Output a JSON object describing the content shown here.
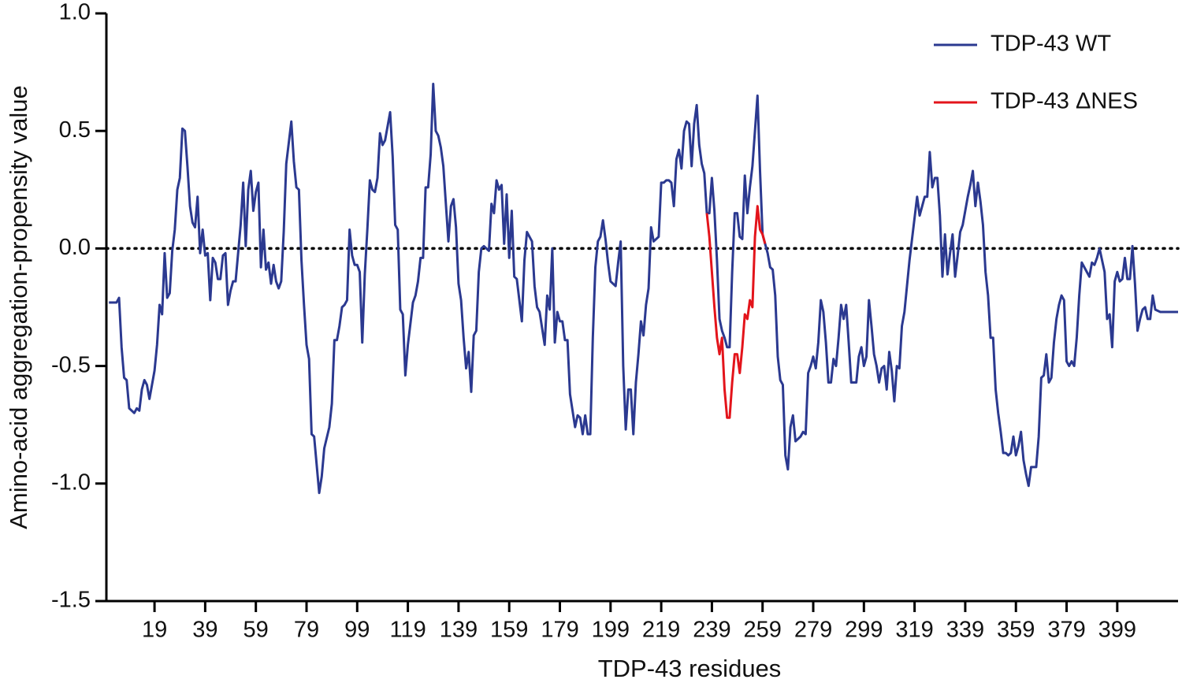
{
  "chart_data": {
    "type": "line",
    "xlabel": "TDP-43 residues",
    "ylabel": "Amino-acid aggregation-propensity value",
    "xlim": [
      0,
      423
    ],
    "xticks": [
      19,
      39,
      59,
      79,
      99,
      119,
      139,
      159,
      179,
      199,
      219,
      239,
      259,
      279,
      299,
      319,
      339,
      359,
      379,
      399
    ],
    "ylim": [
      -1.5,
      1
    ],
    "yticks": [
      -1.5,
      {
        "value": -1,
        "label": "-1.0"
      },
      -0.5,
      {
        "value": 0,
        "label": "0.0"
      },
      0.5,
      {
        "value": 1,
        "label": "1.0"
      }
    ],
    "hline": 0,
    "legend": "upper right",
    "series": [
      {
        "name": "TDP-43 WT",
        "color": "#2b3990",
        "x": [
          1,
          4,
          5,
          6,
          7,
          8,
          9,
          11,
          12,
          13,
          14,
          15,
          16,
          17,
          19,
          20,
          21,
          22,
          23,
          24,
          25,
          26,
          27,
          28,
          29,
          30,
          31,
          32,
          33,
          34,
          35,
          36,
          37,
          38,
          39,
          40,
          41,
          42,
          43,
          44,
          45,
          46,
          47,
          48,
          49,
          50,
          51,
          53,
          54,
          55,
          56,
          57,
          58,
          59,
          60,
          61,
          62,
          63,
          64,
          65,
          66,
          67,
          68,
          69,
          70,
          71,
          72,
          73,
          74,
          75,
          76,
          77,
          78,
          79,
          80,
          81,
          82,
          83,
          84,
          85,
          86,
          88,
          89,
          90,
          91,
          92,
          93,
          94,
          95,
          96,
          97,
          98,
          99,
          100,
          101,
          102,
          103,
          104,
          105,
          106,
          107,
          108,
          109,
          110,
          112,
          113,
          114,
          115,
          116,
          117,
          118,
          119,
          120,
          121,
          122,
          123,
          124,
          125,
          126,
          127,
          128,
          129,
          130,
          131,
          132,
          133,
          135,
          136,
          137,
          138,
          139,
          140,
          141,
          142,
          143,
          144,
          145,
          146,
          147,
          148,
          149,
          151,
          152,
          153,
          154,
          155,
          156,
          157,
          158,
          159,
          160,
          161,
          162,
          163,
          164,
          165,
          166,
          168,
          169,
          170,
          171,
          172,
          173,
          174,
          175,
          176,
          177,
          178,
          179,
          180,
          181,
          182,
          183,
          185,
          186,
          187,
          188,
          189,
          190,
          191,
          192,
          193,
          194,
          195,
          196,
          197,
          198,
          199,
          201,
          202,
          203,
          204,
          205,
          206,
          207,
          208,
          209,
          210,
          211,
          212,
          213,
          214,
          215,
          216,
          218,
          219,
          220,
          221,
          222,
          223,
          224,
          225,
          226,
          227,
          228,
          229,
          230,
          231,
          232,
          233,
          234,
          235,
          236,
          237,
          238,
          239,
          240,
          241,
          242,
          243,
          244,
          245,
          246,
          247,
          248,
          249,
          250,
          251,
          252,
          253,
          254,
          255,
          256,
          257,
          258,
          259,
          260,
          261,
          262,
          263,
          264,
          265,
          266,
          267,
          268,
          269,
          270,
          271,
          272,
          273,
          274,
          275,
          276,
          277,
          278,
          279,
          280,
          281,
          282,
          283,
          284,
          285,
          286,
          287,
          288,
          289,
          290,
          291,
          292,
          293,
          294,
          295,
          296,
          297,
          298,
          299,
          300,
          301,
          302,
          303,
          304,
          305,
          306,
          307,
          308,
          309,
          310,
          311,
          312,
          313,
          314,
          315,
          316,
          317,
          318,
          319,
          320,
          321,
          322,
          323,
          324,
          325,
          326,
          327,
          328,
          329,
          330,
          331,
          332,
          333,
          334,
          335,
          336,
          337,
          338,
          339,
          340,
          341,
          342,
          343,
          344,
          345,
          346,
          347,
          348,
          349,
          350,
          351,
          352,
          353,
          354,
          355,
          356,
          357,
          358,
          359,
          360,
          361,
          362,
          363,
          364,
          365,
          366,
          367,
          368,
          369,
          370,
          371,
          372,
          373,
          374,
          375,
          376,
          377,
          378,
          379,
          380,
          381,
          382,
          383,
          384,
          385,
          386,
          387,
          388,
          389,
          390,
          391,
          392,
          393,
          394,
          395,
          396,
          397,
          398,
          399,
          400,
          401,
          402,
          403,
          404,
          405,
          406,
          407,
          408,
          409,
          410,
          411,
          412,
          413,
          414,
          416,
          423
        ],
        "values": [
          -0.23,
          -0.23,
          -0.21,
          -0.42,
          -0.55,
          -0.56,
          -0.68,
          -0.7,
          -0.68,
          -0.69,
          -0.6,
          -0.56,
          -0.58,
          -0.64,
          -0.52,
          -0.41,
          -0.24,
          -0.28,
          -0.02,
          -0.21,
          -0.19,
          -0.01,
          0.08,
          0.25,
          0.3,
          0.51,
          0.5,
          0.35,
          0.18,
          0.11,
          0.09,
          0.22,
          -0.02,
          0.08,
          -0.03,
          -0.02,
          -0.22,
          -0.04,
          -0.06,
          -0.13,
          -0.13,
          -0.03,
          -0.02,
          -0.24,
          -0.18,
          -0.14,
          -0.14,
          0.1,
          0.28,
          0.01,
          0.25,
          0.33,
          0.16,
          0.24,
          0.28,
          -0.08,
          0.08,
          -0.09,
          -0.06,
          -0.15,
          -0.07,
          -0.14,
          -0.17,
          -0.14,
          0.07,
          0.36,
          0.45,
          0.54,
          0.37,
          0.26,
          0.25,
          -0.05,
          -0.24,
          -0.41,
          -0.47,
          -0.79,
          -0.8,
          -0.92,
          -1.04,
          -0.97,
          -0.85,
          -0.76,
          -0.66,
          -0.39,
          -0.39,
          -0.33,
          -0.25,
          -0.24,
          -0.22,
          0.08,
          -0.03,
          -0.07,
          -0.07,
          -0.1,
          -0.4,
          -0.11,
          0.08,
          0.29,
          0.25,
          0.24,
          0.3,
          0.49,
          0.44,
          0.46,
          0.58,
          0.39,
          0.1,
          0.08,
          -0.26,
          -0.28,
          -0.54,
          -0.41,
          -0.32,
          -0.23,
          -0.2,
          -0.14,
          -0.04,
          -0.04,
          0.26,
          0.26,
          0.4,
          0.7,
          0.5,
          0.48,
          0.43,
          0.35,
          0.03,
          0.18,
          0.21,
          0.09,
          -0.15,
          -0.22,
          -0.38,
          -0.51,
          -0.44,
          -0.61,
          -0.37,
          -0.35,
          -0.1,
          0.0,
          0.01,
          -0.01,
          0.19,
          0.15,
          0.29,
          0.25,
          0.27,
          0.02,
          0.23,
          -0.04,
          0.16,
          -0.12,
          -0.13,
          -0.22,
          -0.31,
          -0.05,
          0.07,
          0.03,
          -0.16,
          -0.25,
          -0.27,
          -0.34,
          -0.41,
          -0.2,
          -0.26,
          0.0,
          -0.4,
          -0.27,
          -0.31,
          -0.31,
          -0.39,
          -0.39,
          -0.62,
          -0.76,
          -0.71,
          -0.72,
          -0.79,
          -0.71,
          -0.79,
          -0.79,
          -0.38,
          -0.08,
          0.03,
          0.05,
          0.12,
          0.04,
          -0.06,
          -0.14,
          -0.16,
          -0.06,
          0.03,
          -0.5,
          -0.77,
          -0.6,
          -0.6,
          -0.79,
          -0.57,
          -0.45,
          -0.31,
          -0.37,
          -0.24,
          -0.17,
          0.09,
          0.03,
          0.05,
          0.28,
          0.28,
          0.29,
          0.29,
          0.28,
          0.18,
          0.38,
          0.42,
          0.34,
          0.5,
          0.54,
          0.53,
          0.35,
          0.53,
          0.61,
          0.44,
          0.36,
          0.32,
          0.15,
          0.15,
          0.3,
          0.16,
          -0.05,
          -0.3,
          -0.35,
          -0.38,
          -0.42,
          -0.42,
          -0.1,
          0.15,
          0.15,
          0.05,
          0.04,
          0.31,
          0.15,
          0.26,
          0.35,
          0.5,
          0.65,
          0.33,
          0.06,
          0.02,
          -0.02,
          -0.08,
          -0.09,
          -0.2,
          -0.46,
          -0.56,
          -0.58,
          -0.88,
          -0.94,
          -0.76,
          -0.71,
          -0.82,
          -0.81,
          -0.8,
          -0.78,
          -0.79,
          -0.53,
          -0.5,
          -0.46,
          -0.51,
          -0.4,
          -0.22,
          -0.27,
          -0.4,
          -0.57,
          -0.57,
          -0.47,
          -0.5,
          -0.38,
          -0.24,
          -0.3,
          -0.24,
          -0.4,
          -0.57,
          -0.57,
          -0.57,
          -0.46,
          -0.42,
          -0.5,
          -0.46,
          -0.22,
          -0.33,
          -0.45,
          -0.5,
          -0.57,
          -0.51,
          -0.5,
          -0.6,
          -0.44,
          -0.52,
          -0.65,
          -0.5,
          -0.51,
          -0.33,
          -0.27,
          -0.16,
          -0.05,
          0.04,
          0.13,
          0.22,
          0.14,
          0.18,
          0.22,
          0.22,
          0.41,
          0.26,
          0.3,
          0.3,
          0.14,
          -0.12,
          0.06,
          -0.11,
          -0.02,
          0.06,
          -0.12,
          -0.03,
          0.07,
          0.1,
          0.16,
          0.22,
          0.27,
          0.33,
          0.18,
          0.28,
          0.2,
          0.1,
          -0.1,
          -0.2,
          -0.38,
          -0.38,
          -0.6,
          -0.7,
          -0.78,
          -0.87,
          -0.87,
          -0.88,
          -0.87,
          -0.8,
          -0.88,
          -0.84,
          -0.78,
          -0.9,
          -0.96,
          -1.01,
          -0.93,
          -0.93,
          -0.93,
          -0.8,
          -0.55,
          -0.54,
          -0.45,
          -0.57,
          -0.55,
          -0.4,
          -0.3,
          -0.24,
          -0.2,
          -0.22,
          -0.48,
          -0.5,
          -0.48,
          -0.5,
          -0.38,
          -0.2,
          -0.06,
          -0.08,
          -0.1,
          -0.12,
          -0.06,
          -0.07,
          -0.04,
          0.0,
          -0.05,
          -0.1,
          -0.3,
          -0.28,
          -0.42,
          -0.14,
          -0.1,
          -0.14,
          -0.13,
          -0.04,
          -0.13,
          -0.13,
          0.01,
          -0.15,
          -0.35,
          -0.3,
          -0.26,
          -0.25,
          -0.3,
          -0.3,
          -0.2,
          -0.26,
          -0.27,
          -0.27
        ]
      },
      {
        "name": "TDP-43 ΔNES",
        "color": "#e3141b",
        "x": [
          237,
          238,
          239,
          240,
          241,
          242,
          243,
          244,
          245,
          246,
          247,
          248,
          249,
          250,
          251,
          252,
          253,
          254,
          255,
          256,
          257,
          258,
          259,
          260
        ],
        "values": [
          0.15,
          0.05,
          -0.1,
          -0.25,
          -0.38,
          -0.45,
          -0.38,
          -0.6,
          -0.72,
          -0.72,
          -0.57,
          -0.45,
          -0.45,
          -0.53,
          -0.42,
          -0.28,
          -0.3,
          -0.22,
          -0.25,
          0.05,
          0.18,
          0.08,
          0.06,
          0.02
        ]
      }
    ]
  }
}
